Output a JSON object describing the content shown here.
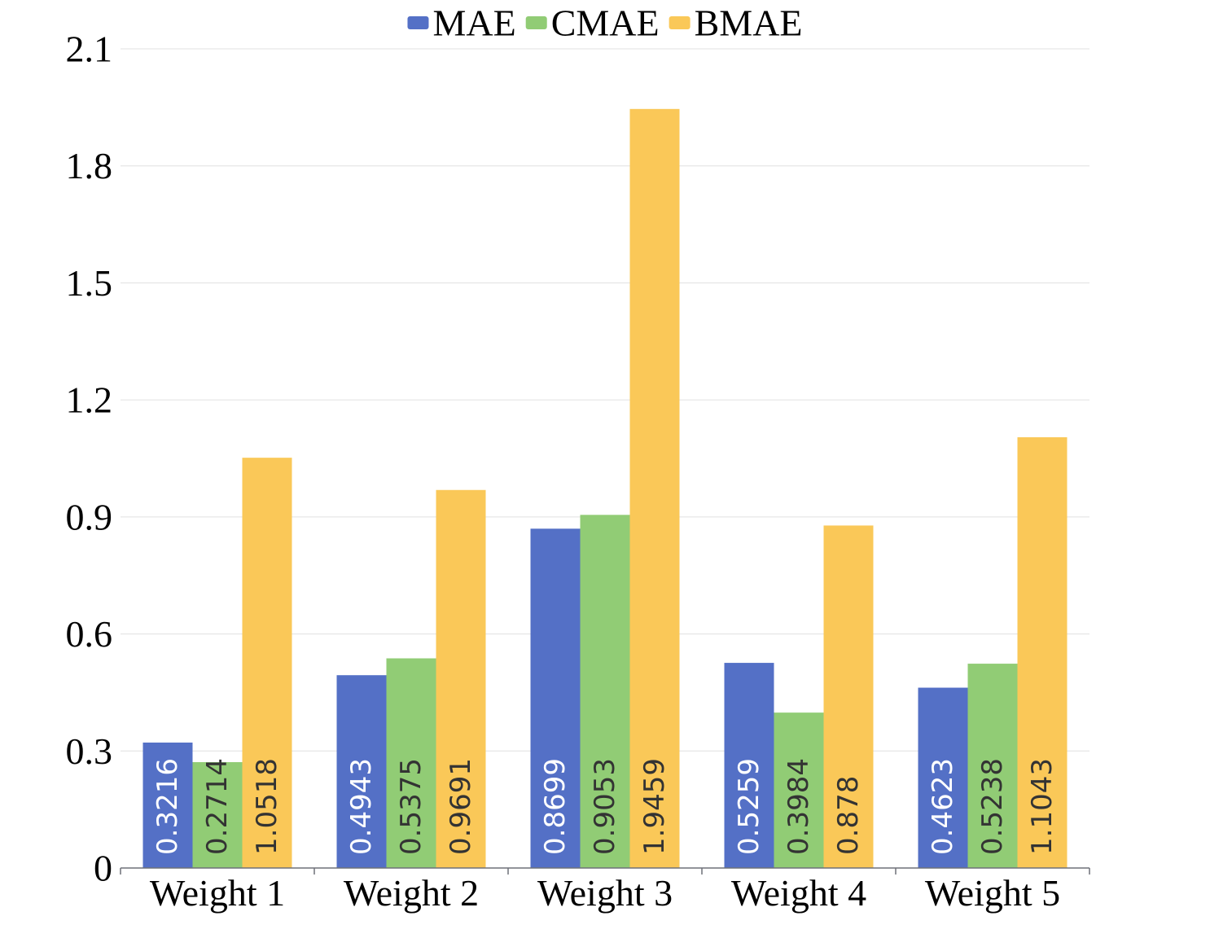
{
  "chart_data": {
    "type": "bar",
    "title": "",
    "xlabel": "",
    "ylabel": "",
    "categories": [
      "Weight 1",
      "Weight 2",
      "Weight 3",
      "Weight 4",
      "Weight 5"
    ],
    "series": [
      {
        "name": "MAE",
        "color": "#5470c6",
        "label_color": "#ffffff",
        "values": [
          0.3216,
          0.4943,
          0.8699,
          0.5259,
          0.4623
        ],
        "labels": [
          "0.3216",
          "0.4943",
          "0.8699",
          "0.5259",
          "0.4623"
        ]
      },
      {
        "name": "CMAE",
        "color": "#91cc75",
        "label_color": "#333333",
        "values": [
          0.2714,
          0.5375,
          0.9053,
          0.3984,
          0.5238
        ],
        "labels": [
          "0.2714",
          "0.5375",
          "0.9053",
          "0.3984",
          "0.5238"
        ]
      },
      {
        "name": "BMAE",
        "color": "#fac858",
        "label_color": "#333333",
        "values": [
          1.0518,
          0.9691,
          1.9459,
          0.878,
          1.1043
        ],
        "labels": [
          "1.0518",
          "0.9691",
          "1.9459",
          "0.878",
          "1.1043"
        ]
      }
    ],
    "ylim": [
      0,
      2.1
    ],
    "yticks": [
      0,
      0.3,
      0.6,
      0.9,
      1.2,
      1.5,
      1.8,
      2.1
    ],
    "ytick_labels": [
      "0",
      "0.3",
      "0.6",
      "0.9",
      "1.2",
      "1.5",
      "1.8",
      "2.1"
    ],
    "grid": true,
    "legend_position": "top-center",
    "colors": {
      "gridline": "#e0e0e0",
      "axis": "#6e7079"
    }
  }
}
